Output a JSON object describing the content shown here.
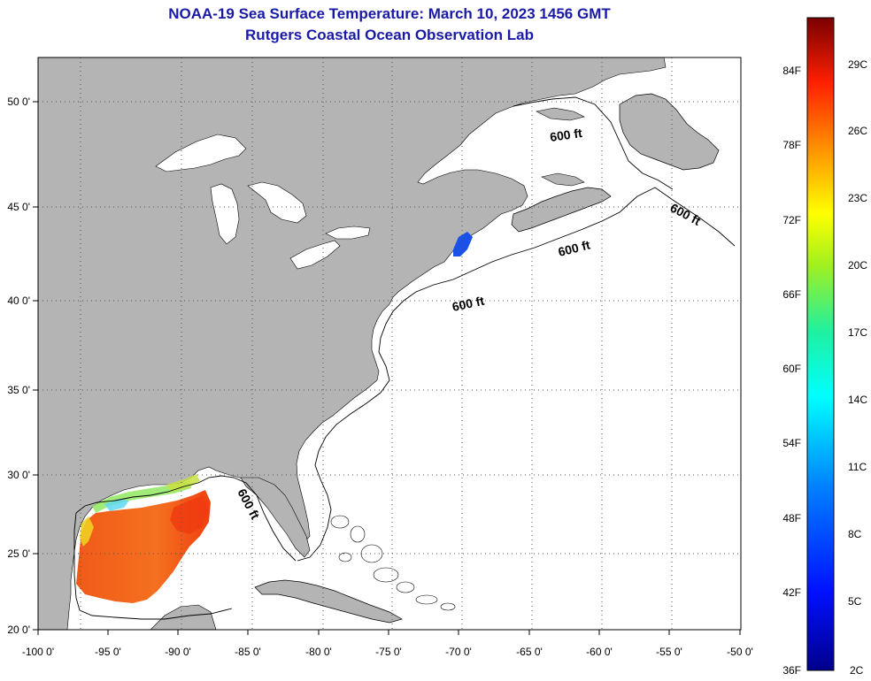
{
  "title": {
    "line1": "NOAA-19 Sea Surface Temperature:  March 10, 2023 1456 GMT",
    "line2": "Rutgers Coastal Ocean Observation Lab"
  },
  "axes": {
    "x_ticks": [
      "-100 0'",
      "-95 0'",
      "-90 0'",
      "-85 0'",
      "-80 0'",
      "-75 0'",
      "-70 0'",
      "-65 0'",
      "-60 0'",
      "-55 0'",
      "-50 0'"
    ],
    "y_ticks": [
      "50 0'",
      "45 0'",
      "40 0'",
      "35 0'",
      "30 0'",
      "25 0'",
      "20 0'"
    ]
  },
  "contour_label": "600 ft",
  "colorbar": {
    "f_labels": [
      "84F",
      "78F",
      "72F",
      "66F",
      "60F",
      "54F",
      "48F",
      "42F",
      "36F"
    ],
    "c_labels": [
      "29C",
      "26C",
      "23C",
      "20C",
      "17C",
      "14C",
      "11C",
      "8C",
      "5C",
      "2C"
    ]
  },
  "colors": {
    "land": "#b4b4b4",
    "water": "#ffffff",
    "grid": "#555555",
    "title": "#1a1aa8"
  }
}
